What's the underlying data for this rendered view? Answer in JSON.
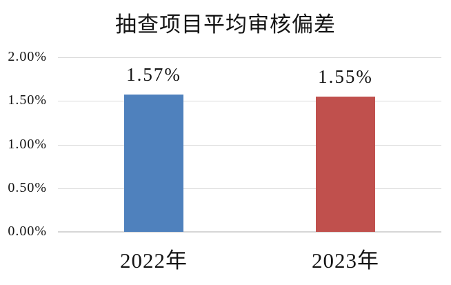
{
  "chart_data": {
    "type": "bar",
    "title": "抽查项目平均审核偏差",
    "categories": [
      "2022年",
      "2023年"
    ],
    "values": [
      1.57,
      1.55
    ],
    "value_labels": [
      "1.57%",
      "1.55%"
    ],
    "bar_colors": [
      "#4F81BD",
      "#C0504D"
    ],
    "ylim": [
      0,
      2
    ],
    "ytick_step": 0.5,
    "ytick_labels": [
      "2.00%",
      "1.50%",
      "1.00%",
      "0.50%",
      "0.00%"
    ],
    "xlabel": "",
    "ylabel": "",
    "grid": "horizontal",
    "legend": "none",
    "gridline_color": "#DBDBDB"
  }
}
